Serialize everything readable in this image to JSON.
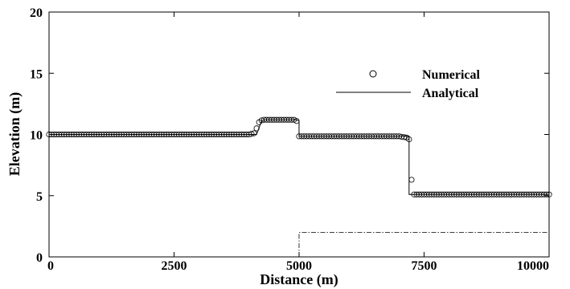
{
  "chart_data": {
    "type": "line",
    "title": "",
    "xlabel": "Distance (m)",
    "ylabel": "Elevation (m)",
    "xlim": [
      0,
      10000
    ],
    "ylim": [
      0,
      20
    ],
    "xticks": [
      "0",
      "2500",
      "5000",
      "7500",
      "10000"
    ],
    "yticks": [
      "0",
      "5",
      "10",
      "15",
      "20"
    ],
    "grid": false,
    "legend_position": "top-right",
    "series": [
      {
        "name": "Numerical",
        "style": "open-circle markers",
        "x_range": [
          0,
          10000
        ],
        "marker_spacing": 50,
        "points": [
          [
            0,
            10.0
          ],
          [
            1000,
            10.0
          ],
          [
            2000,
            10.0
          ],
          [
            3000,
            10.0
          ],
          [
            4000,
            10.0
          ],
          [
            4100,
            10.1
          ],
          [
            4150,
            10.5
          ],
          [
            4200,
            11.0
          ],
          [
            4250,
            11.15
          ],
          [
            4300,
            11.2
          ],
          [
            4600,
            11.2
          ],
          [
            4900,
            11.2
          ],
          [
            4950,
            11.1
          ],
          [
            5000,
            9.85
          ],
          [
            6000,
            9.85
          ],
          [
            7000,
            9.85
          ],
          [
            7150,
            9.75
          ],
          [
            7200,
            9.6
          ],
          [
            7250,
            6.3
          ],
          [
            7300,
            5.1
          ],
          [
            8000,
            5.1
          ],
          [
            9000,
            5.1
          ],
          [
            10000,
            5.1
          ]
        ]
      },
      {
        "name": "Analytical",
        "style": "solid",
        "points": [
          [
            0,
            10.0
          ],
          [
            4150,
            10.0
          ],
          [
            4250,
            11.1
          ],
          [
            4300,
            11.2
          ],
          [
            4950,
            11.2
          ],
          [
            5000,
            11.1
          ],
          [
            5000,
            9.85
          ],
          [
            7200,
            9.85
          ],
          [
            7200,
            5.1
          ],
          [
            10000,
            5.1
          ]
        ]
      },
      {
        "name": "",
        "style": "dash-dot",
        "points": [
          [
            0,
            0.0
          ],
          [
            5000,
            0.0
          ],
          [
            5000,
            2.0
          ],
          [
            10000,
            2.0
          ]
        ]
      }
    ]
  }
}
